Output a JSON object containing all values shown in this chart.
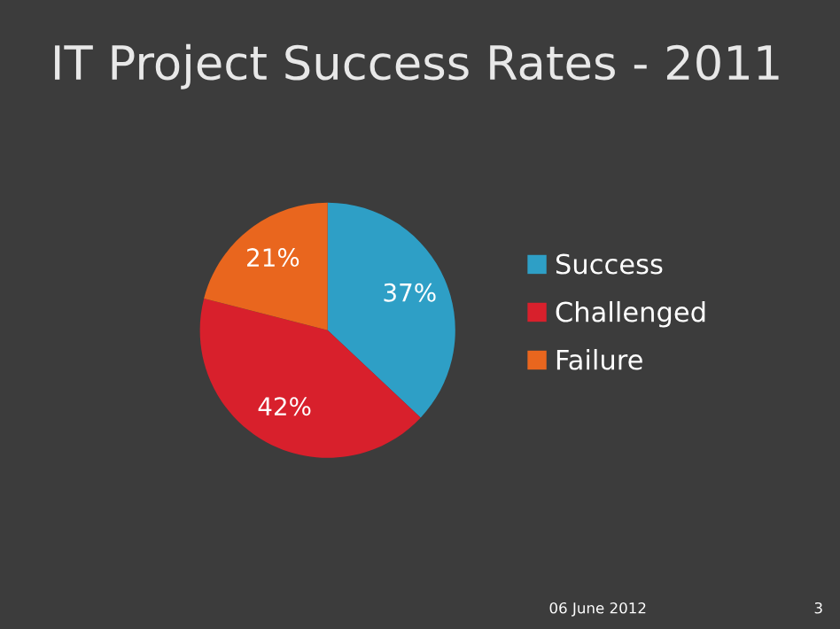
{
  "chart_data": {
    "type": "pie",
    "title": "IT Project Success Rates - 2011",
    "categories": [
      "Success",
      "Challenged",
      "Failure"
    ],
    "values": [
      37,
      42,
      21
    ],
    "colors": [
      "#2e9fc6",
      "#d8202c",
      "#e9661e"
    ],
    "value_labels": [
      "37%",
      "42%",
      "21%"
    ],
    "legend": "right",
    "annotations": [
      "06 June 2012",
      "3"
    ]
  }
}
